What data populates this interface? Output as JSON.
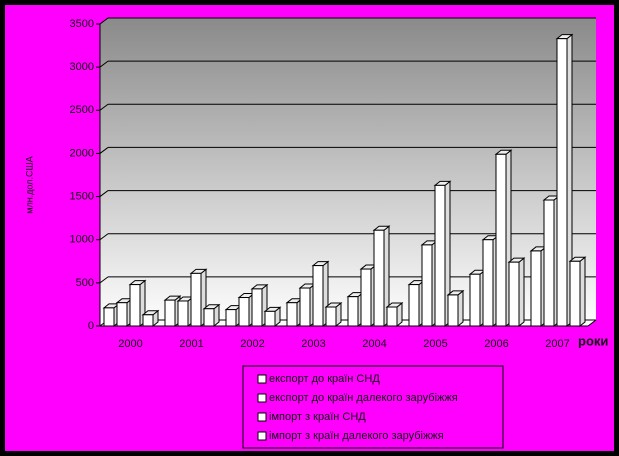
{
  "chart_data": {
    "type": "bar3d",
    "y_label": "млн.дол.США",
    "x_label": "роки",
    "categories": [
      "2000",
      "2001",
      "2002",
      "2003",
      "2004",
      "2005",
      "2006",
      "2007"
    ],
    "series": [
      {
        "name": "експорт до країн СНД",
        "color": "#ffffff",
        "values": [
          210,
          300,
          190,
          270,
          340,
          480,
          600,
          870
        ]
      },
      {
        "name": "експорт до країн далекого зарубіжжя",
        "color": "#ffffff",
        "values": [
          270,
          290,
          330,
          440,
          660,
          940,
          1000,
          1460
        ]
      },
      {
        "name": "імпорт з країн СНД",
        "color": "#ffffff",
        "values": [
          480,
          610,
          430,
          700,
          1110,
          1630,
          1990,
          3330
        ]
      },
      {
        "name": "імпорт з країн далекого зарубіжжя",
        "color": "#ffffff",
        "values": [
          130,
          200,
          170,
          220,
          220,
          360,
          740,
          750
        ]
      }
    ],
    "ylim": [
      0,
      3500
    ],
    "yticks": [
      0,
      500,
      1000,
      1500,
      2000,
      2500,
      3000,
      3500
    ],
    "grid": true
  }
}
